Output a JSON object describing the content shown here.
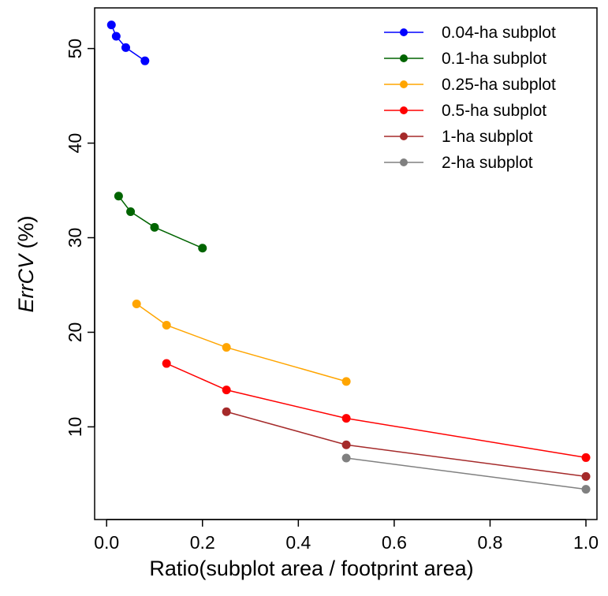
{
  "chart_data": {
    "type": "line",
    "x_label": "Ratio(subplot area / footprint area)",
    "y_label": [
      "ErrCV",
      "(%)"
    ],
    "xlim": [
      -0.025,
      1.023
    ],
    "ylim": [
      0.2,
      54.3
    ],
    "xticks": [
      {
        "value": 0,
        "label": "0.0"
      },
      0.2,
      0.4,
      0.6,
      0.8,
      {
        "value": 1,
        "label": "1.0"
      }
    ],
    "yticks": [
      10,
      20,
      30,
      40,
      50
    ],
    "legend": "top-right",
    "series": [
      {
        "name": "0.04-ha subplot",
        "color": "#0000ff",
        "x": [
          0.01,
          0.02,
          0.04,
          0.08
        ],
        "values": [
          52.5,
          51.3,
          50.1,
          48.7
        ]
      },
      {
        "name": "0.1-ha subplot",
        "color": "#006400",
        "x": [
          0.025,
          0.05,
          0.1,
          0.2
        ],
        "values": [
          34.4,
          32.75,
          31.1,
          28.9
        ]
      },
      {
        "name": "0.25-ha subplot",
        "color": "#ffa500",
        "x": [
          0.0625,
          0.125,
          0.25,
          0.5
        ],
        "values": [
          23,
          20.75,
          18.4,
          14.8
        ]
      },
      {
        "name": "0.5-ha subplot",
        "color": "#ff0000",
        "x": [
          0.125,
          0.25,
          0.5,
          1.0
        ],
        "values": [
          16.7,
          13.9,
          10.9,
          6.75
        ]
      },
      {
        "name": "1-ha subplot",
        "color": "#a52a2a",
        "x": [
          0.25,
          0.5,
          1.0
        ],
        "values": [
          11.6,
          8.1,
          4.75
        ]
      },
      {
        "name": "2-ha subplot",
        "color": "#808080",
        "x": [
          0.5,
          1.0
        ],
        "values": [
          6.7,
          3.4
        ]
      }
    ]
  }
}
